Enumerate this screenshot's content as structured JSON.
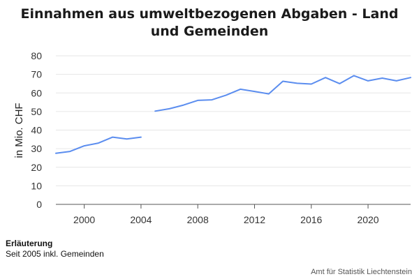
{
  "chart_data": {
    "type": "line",
    "title_lines": [
      "Einnahmen aus umweltbezogenen Abgaben - Land",
      "und Gemeinden"
    ],
    "ylabel": "in Mio. CHF",
    "xlabel": "",
    "xlim": [
      1998,
      2023
    ],
    "ylim": [
      0,
      80
    ],
    "yticks": [
      0,
      10,
      20,
      30,
      40,
      50,
      60,
      70,
      80
    ],
    "xticks": [
      2000,
      2004,
      2008,
      2012,
      2016,
      2020
    ],
    "grid": true,
    "line_color": "#5b8def",
    "segments": [
      {
        "x": [
          1998,
          1999,
          2000,
          2001,
          2002,
          2003,
          2004
        ],
        "y": [
          27.5,
          28.5,
          31.5,
          33,
          36.2,
          35.2,
          36.2
        ]
      },
      {
        "x": [
          2005,
          2006,
          2007,
          2008,
          2009,
          2010,
          2011,
          2012,
          2013,
          2014,
          2015,
          2016,
          2017,
          2018,
          2019,
          2020,
          2021,
          2022,
          2023
        ],
        "y": [
          50.2,
          51.5,
          53.5,
          56,
          56.3,
          58.8,
          62,
          60.8,
          59.5,
          66.3,
          65.2,
          64.8,
          68.3,
          65,
          69.3,
          66.5,
          68,
          66.5,
          68.3
        ]
      }
    ]
  },
  "note": {
    "heading": "Erläuterung",
    "text": "Seit 2005 inkl. Gemeinden"
  },
  "source": "Amt für Statistik Liechtenstein"
}
